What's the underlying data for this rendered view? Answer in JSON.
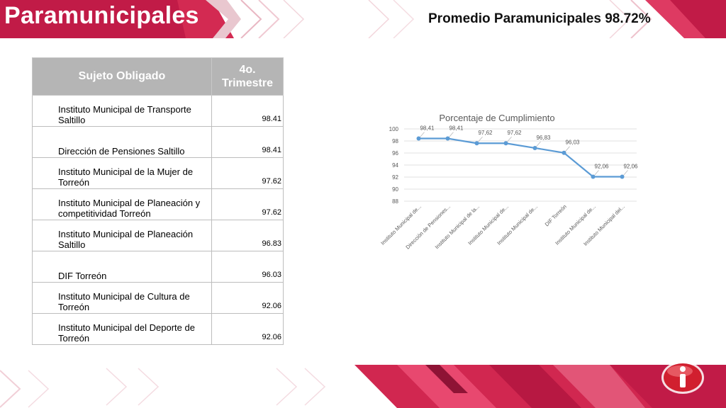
{
  "header": {
    "title": "Paramunicipales",
    "subtitle": "Promedio  Paramunicipales 98.72%"
  },
  "table": {
    "col_entity": "Sujeto Obligado",
    "col_quarter_line1": "4o.",
    "col_quarter_line2": "Trimestre",
    "rows": [
      {
        "entity": "Instituto Municipal de Transporte Saltillo",
        "value": "98.41"
      },
      {
        "entity": "Dirección de Pensiones Saltillo",
        "value": "98.41"
      },
      {
        "entity": "Instituto Municipal de la Mujer de Torreón",
        "value": "97.62"
      },
      {
        "entity": "Instituto Municipal de Planeación y competitividad Torreón",
        "value": "97.62"
      },
      {
        "entity": "Instituto Municipal de Planeación Saltillo",
        "value": "96.83"
      },
      {
        "entity": "DIF Torreón",
        "value": "96.03"
      },
      {
        "entity": "Instituto Municipal de Cultura de Torreón",
        "value": "92.06"
      },
      {
        "entity": "Instituto Municipal del Deporte de Torreón",
        "value": "92.06"
      }
    ]
  },
  "chart_data": {
    "type": "line",
    "title": "Porcentaje de Cumplimiento",
    "categories": [
      "Instituto Municipal de...",
      "Dirección de Pensiones...",
      "Instituto Municipal de la...",
      "Instituto Municipal de...",
      "Instituto Municipal de...",
      "DIF Torreón",
      "Instituto Municipal de...",
      "Instituto Municipal del..."
    ],
    "values": [
      98.41,
      98.41,
      97.62,
      97.62,
      96.83,
      96.03,
      92.06,
      92.06
    ],
    "data_labels": [
      "98,41",
      "98,41",
      "97,62",
      "97,62",
      "96,83",
      "96,03",
      "92,06",
      "92,06"
    ],
    "yticks": [
      "100",
      "98",
      "96",
      "94",
      "92",
      "90",
      "88"
    ],
    "ylim": [
      88,
      100
    ],
    "grid": true,
    "line_color": "#5b9bd5"
  },
  "colors": {
    "brand": "#c11b47",
    "header_gray": "#b5b5b5"
  },
  "icons": {
    "logo": "info-icon"
  }
}
